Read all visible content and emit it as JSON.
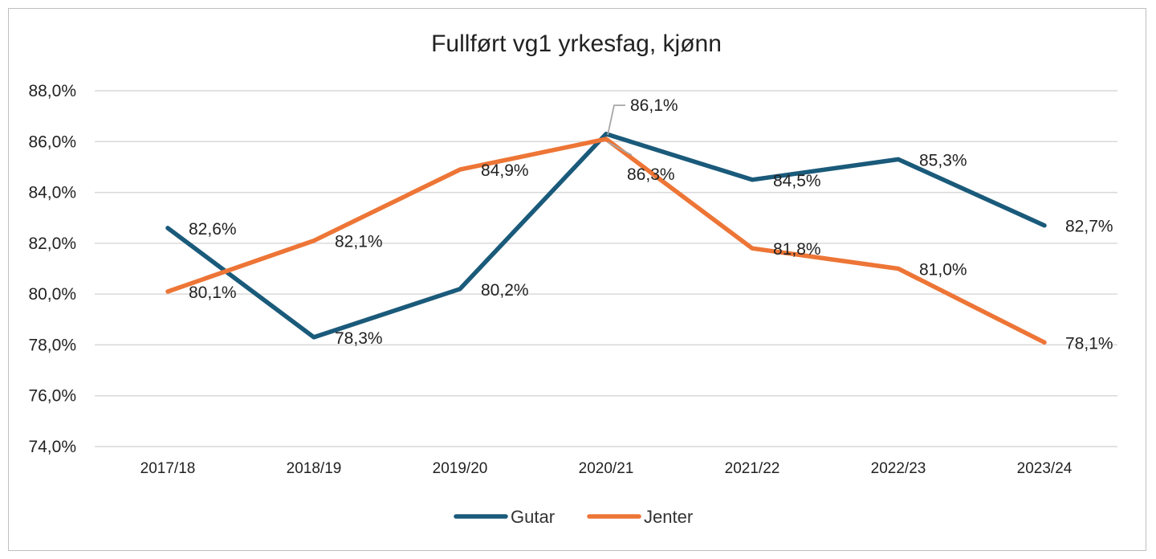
{
  "chart_data": {
    "type": "line",
    "title": "Fullført vg1 yrkesfag, kjønn",
    "categories": [
      "2017/18",
      "2018/19",
      "2019/20",
      "2020/21",
      "2021/22",
      "2022/23",
      "2023/24"
    ],
    "series": [
      {
        "name": "Gutar",
        "color": "#1a5a7a",
        "values": [
          82.6,
          78.3,
          80.2,
          86.3,
          84.5,
          85.3,
          82.7
        ],
        "labels": [
          "82,6%",
          "78,3%",
          "80,2%",
          "86,3%",
          "84,5%",
          "85,3%",
          "82,7%"
        ]
      },
      {
        "name": "Jenter",
        "color": "#ed7536",
        "values": [
          80.1,
          82.1,
          84.9,
          86.1,
          81.8,
          81.0,
          78.1
        ],
        "labels": [
          "80,1%",
          "82,1%",
          "84,9%",
          "86,1%",
          "81,8%",
          "81,0%",
          "78,1%"
        ]
      }
    ],
    "ylim": [
      74,
      88
    ],
    "yticks": [
      74,
      76,
      78,
      80,
      82,
      84,
      86,
      88
    ],
    "ytick_labels": [
      "74,0%",
      "76,0%",
      "78,0%",
      "80,0%",
      "82,0%",
      "84,0%",
      "86,0%",
      "88,0%"
    ],
    "grid": true,
    "legend_position": "bottom"
  }
}
